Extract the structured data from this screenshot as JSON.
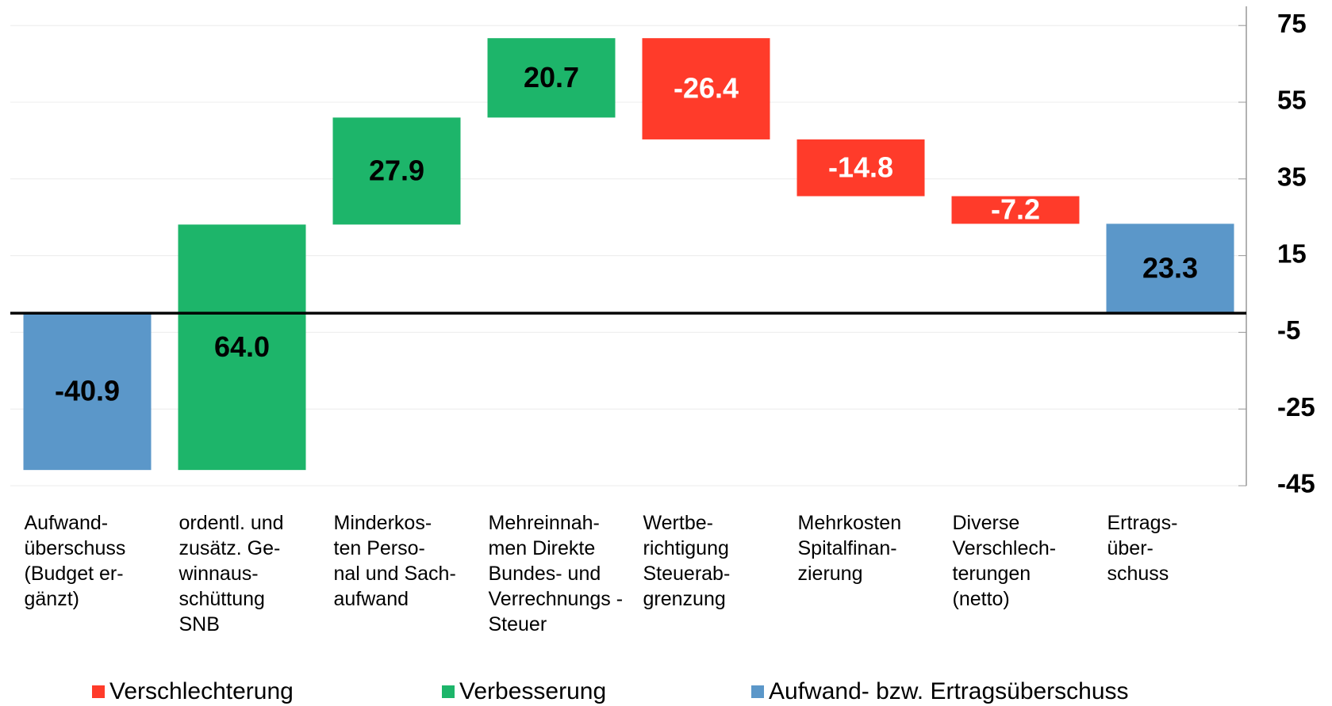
{
  "chart_data": {
    "type": "waterfall",
    "categories": [
      "Aufwand-\nüberschuss\n(Budget er-\ngänzt)",
      "ordentl. und\nzusätz. Ge-\nwinnaus-\nschüttung\nSNB",
      "Minderkos-\nten Perso-\nnal und Sach-\naufwand",
      "Mehreinnah-\nmen Direkte\nBundes- und\nVerrechnungs -\nSteuer",
      "Wertbe-\nrichtigung\nSteuerab-\ngrenzung",
      "Mehrkosten\nSpitalfinan-\nzierung",
      "Diverse\nVerschlech-\nterungen\n(netto)",
      "Ertrags-\nüber-\nschuss"
    ],
    "series": [
      {
        "name": "Verschlechterung",
        "color": "#ff3b2a",
        "values": [
          null,
          null,
          null,
          null,
          -26.4,
          -14.8,
          -7.2,
          null
        ],
        "value_labels": [
          null,
          null,
          null,
          null,
          "-26.4",
          "-14.8",
          "-7.2",
          null
        ]
      },
      {
        "name": "Verbesserung",
        "color": "#1db56a",
        "values": [
          null,
          64.0,
          27.9,
          20.7,
          null,
          null,
          null,
          null
        ],
        "value_labels": [
          null,
          "64.0",
          "27.9",
          "20.7",
          null,
          null,
          null,
          null
        ]
      },
      {
        "name": "Aufwand- bzw. Ertragsüberschuss",
        "color": "#5b97c9",
        "total": true,
        "values": [
          -40.9,
          null,
          null,
          null,
          null,
          null,
          null,
          23.3
        ],
        "value_labels": [
          "-40.9",
          null,
          null,
          null,
          null,
          null,
          null,
          "23.3"
        ]
      }
    ],
    "ylim": [
      -45,
      80
    ],
    "yticks": [
      75,
      55,
      35,
      15,
      -5,
      -25,
      -45
    ],
    "grid": true,
    "legend": "bottom"
  }
}
